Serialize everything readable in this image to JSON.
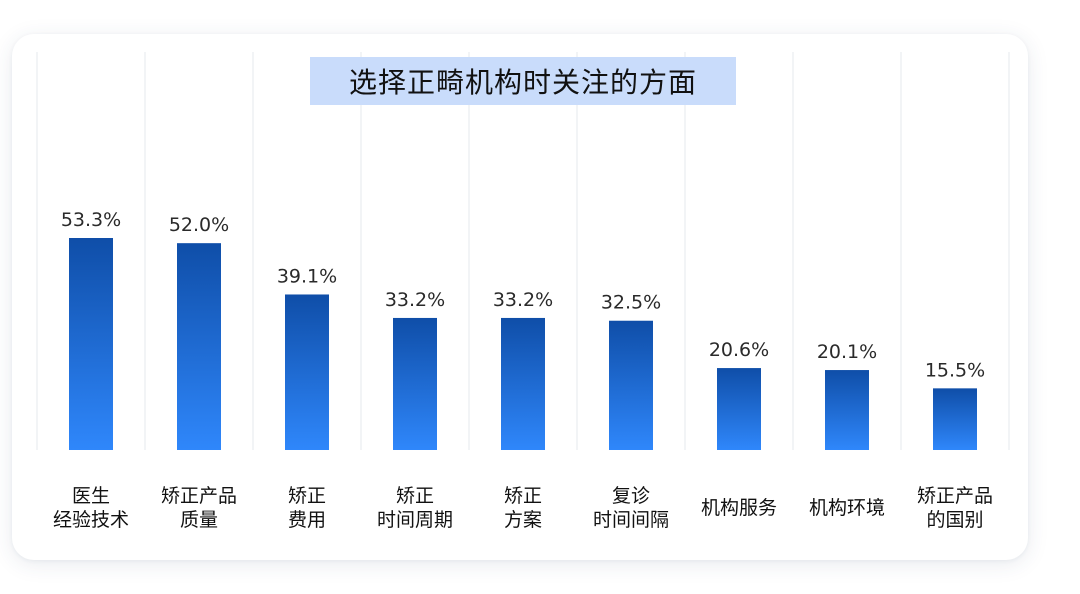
{
  "chart_data": {
    "type": "bar",
    "title": "选择正畸机构时关注的方面",
    "categories": [
      [
        "医生",
        "经验技术"
      ],
      [
        "矫正产品",
        "质量"
      ],
      [
        "矫正",
        "费用"
      ],
      [
        "矫正",
        "时间周期"
      ],
      [
        "矫正",
        "方案"
      ],
      [
        "复诊",
        "时间间隔"
      ],
      [
        "机构服务"
      ],
      [
        "机构环境"
      ],
      [
        "矫正产品",
        "的国别"
      ]
    ],
    "values": [
      53.3,
      52.0,
      39.1,
      33.2,
      33.2,
      32.5,
      20.6,
      20.1,
      15.5
    ],
    "value_labels": [
      "53.3%",
      "52.0%",
      "39.1%",
      "33.2%",
      "33.2%",
      "32.5%",
      "20.6%",
      "20.1%",
      "15.5%"
    ],
    "ylim": [
      0,
      53.3
    ],
    "grid": "vertical-separators",
    "colors": {
      "bar_top": "#0f4ea8",
      "bar_bottom": "#2f87fb",
      "title_bg": "#c9dcfb",
      "gridline": "#e6e8ec"
    }
  }
}
